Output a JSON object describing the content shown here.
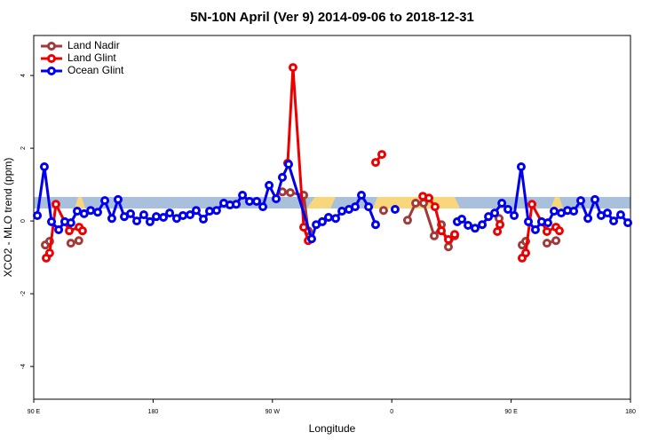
{
  "chart_data": {
    "type": "line",
    "title": "5N-10N April (Ver 9)   2014-09-06 to 2018-12-31",
    "xlabel": "Longitude",
    "ylabel": "XCO2 - MLO trend (ppm)",
    "xlim": [
      90,
      540
    ],
    "ylim": [
      -4.9,
      5.1
    ],
    "xticks": [
      {
        "value": 90,
        "label": "90 E"
      },
      180,
      {
        "value": 270,
        "label": "90 W"
      },
      {
        "value": 360,
        "label": "0"
      },
      {
        "value": 450,
        "label": "90 E"
      },
      {
        "value": 540,
        "label": "180"
      }
    ],
    "yticks": [
      -4,
      -2,
      0,
      2,
      4
    ],
    "legend": "top-left",
    "series": [
      {
        "name": "Land Nadir",
        "color": "#a33a3a",
        "x": [
          98.7,
          102,
          null,
          118,
          124,
          null,
          277.5,
          283.5,
          293.6,
          297,
          null,
          353.8,
          null,
          371.9,
          378,
          384,
          392,
          397.4,
          402.7,
          407.4,
          null,
          440.9,
          null,
          458.3,
          461,
          null,
          477,
          483.8
        ],
        "values": [
          -0.66,
          -0.56,
          null,
          -0.61,
          -0.54,
          null,
          0.8,
          0.78,
          0.71,
          -0.27,
          null,
          0.29,
          null,
          0.02,
          0.49,
          0.49,
          -0.41,
          -0.1,
          -0.71,
          -0.41,
          null,
          0.07,
          null,
          -0.66,
          -0.56,
          null,
          -0.61,
          -0.54
        ]
      },
      {
        "name": "Land Glint",
        "color": "#ee0000",
        "x": [
          99.4,
          102,
          106.7,
          116.8,
          124.2,
          126.8,
          null,
          281.5,
          285.5,
          293.6,
          297,
          null,
          347.8,
          352.5,
          null,
          383.4,
          388,
          392.6,
          397.4,
          402.7,
          407.4,
          null,
          439.6,
          441.6,
          null,
          458.3,
          461,
          465.7,
          477,
          483.8,
          486.4
        ],
        "values": [
          -1.02,
          -0.88,
          0.46,
          -0.27,
          -0.17,
          -0.27,
          null,
          1.59,
          4.22,
          -0.17,
          -0.54,
          null,
          1.61,
          1.83,
          null,
          0.68,
          0.63,
          0.39,
          -0.27,
          -0.51,
          -0.37,
          null,
          -0.29,
          -0.1,
          null,
          -1.02,
          -0.88,
          0.46,
          -0.29,
          -0.17,
          -0.27
        ]
      },
      {
        "name": "Ocean Glint",
        "color": "#0000ee",
        "x": [
          92.7,
          98,
          103.4,
          108.8,
          113.4,
          118,
          122.8,
          128,
          132.9,
          138.2,
          143.6,
          148.9,
          153.6,
          158.3,
          163,
          167.7,
          173,
          177.7,
          182.4,
          187.8,
          192.5,
          197.8,
          202.5,
          207.9,
          212.5,
          217.9,
          222.6,
          227.9,
          233.3,
          238,
          242.7,
          247.4,
          252.7,
          258.1,
          262.8,
          267.5,
          272.8,
          277.5,
          282.2,
          299.6,
          303,
          307.6,
          312.3,
          317.7,
          322.4,
          327.7,
          332.4,
          337.1,
          342.5,
          347.8,
          null,
          362.5,
          null,
          409.4,
          412.8,
          417.5,
          422.8,
          428.2,
          432.9,
          437.6,
          443,
          447.6,
          452.3,
          457.6,
          463,
          468.3,
          473,
          477.7,
          482.4,
          487.8,
          492.5,
          497.2,
          502.5,
          507.9,
          513.2,
          517.9,
          522.6,
          527.3,
          532.6,
          538
        ],
        "values": [
          0.15,
          1.49,
          -0.02,
          -0.24,
          -0.02,
          -0.05,
          0.27,
          0.2,
          0.29,
          0.24,
          0.56,
          0.07,
          0.59,
          0.12,
          0.2,
          0,
          0.17,
          -0.02,
          0.12,
          0.1,
          0.22,
          0.07,
          0.15,
          0.17,
          0.29,
          0.05,
          0.27,
          0.29,
          0.49,
          0.44,
          0.46,
          0.71,
          0.54,
          0.54,
          0.39,
          0.98,
          0.61,
          1.2,
          1.56,
          -0.49,
          -0.1,
          -0.02,
          0.1,
          0.07,
          0.27,
          0.32,
          0.39,
          0.71,
          0.39,
          -0.1,
          null,
          0.32,
          null,
          -0.02,
          0.05,
          -0.12,
          -0.2,
          -0.1,
          0.12,
          0.22,
          0.49,
          0.32,
          0.15,
          1.49,
          -0.02,
          -0.24,
          -0.02,
          -0.05,
          0.27,
          0.22,
          0.29,
          0.27,
          0.56,
          0.07,
          0.59,
          0.15,
          0.22,
          0,
          0.17,
          -0.05
        ]
      }
    ]
  }
}
